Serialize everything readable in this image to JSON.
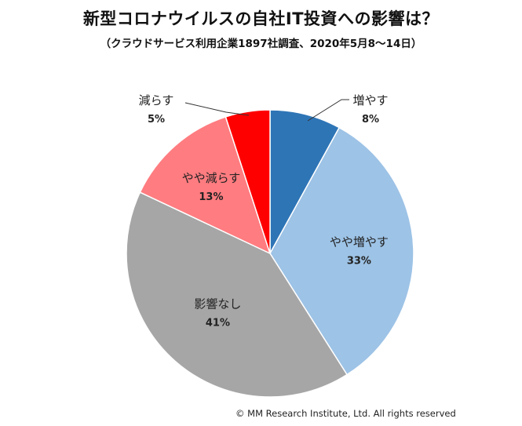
{
  "title": "新型コロナウイルスの自社IT投資への影響は？",
  "subtitle": "（クラウドサービス利用企業1897社調査、2020年5月8～14日）",
  "copyright": "© MM Research Institute, Ltd. All rights reserved",
  "chart_data": {
    "type": "pie",
    "categories": [
      "増やす",
      "やや増やす",
      "影響なし",
      "やや減らす",
      "減らす"
    ],
    "values": [
      8,
      33,
      41,
      13,
      5
    ],
    "labels": [
      "8%",
      "33%",
      "41%",
      "13%",
      "5%"
    ],
    "colors": [
      "#2E75B6",
      "#9DC3E6",
      "#A6A6A6",
      "#FF7C80",
      "#FF0000"
    ],
    "start": "12 o'clock",
    "direction": "clockwise"
  }
}
